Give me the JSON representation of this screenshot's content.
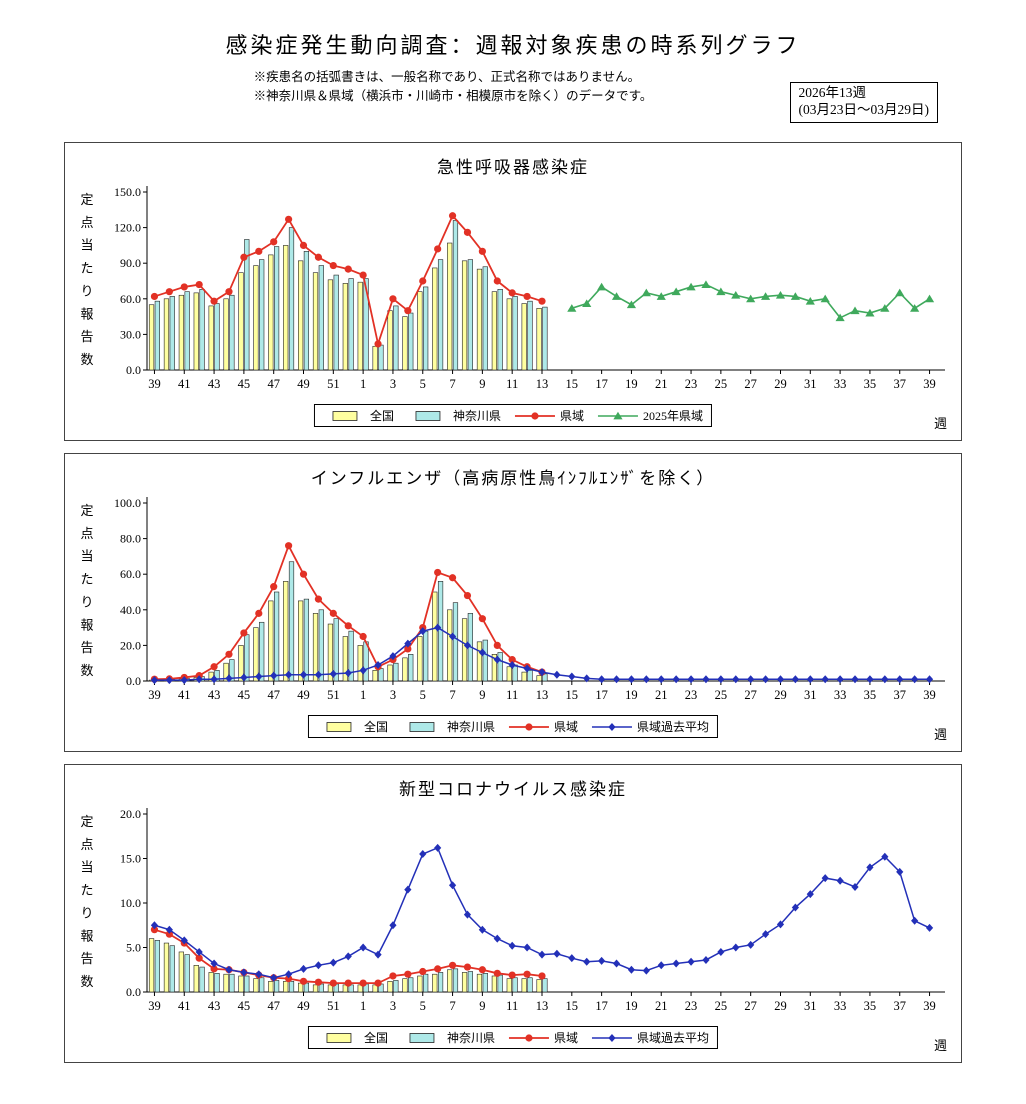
{
  "header": {
    "title": "感染症発生動向調査：週報対象疾患の時系列グラフ",
    "note1": "※疾患名の括弧書きは、一般名称であり、正式名称ではありません。",
    "note2": "※神奈川県＆県域（横浜市・川崎市・相模原市を除く）のデータです。",
    "week_box": {
      "line1": "2026年13週",
      "line2": "(03月23日～03月29日)"
    }
  },
  "y_axis_label": "定点当たり報告数",
  "chart_data": [
    {
      "type": "bar",
      "title": "急性呼吸器感染症",
      "x_unit": "週",
      "ylabel": "定点当たり報告数",
      "y_max": 150,
      "y_step": 30,
      "y_decimals": 1,
      "x_slots": 53,
      "x_tick_labels": [
        "39",
        "41",
        "43",
        "45",
        "47",
        "49",
        "51",
        "1",
        "3",
        "5",
        "7",
        "9",
        "11",
        "13",
        "15",
        "17",
        "19",
        "21",
        "23",
        "25",
        "27",
        "29",
        "31",
        "33",
        "35",
        "37",
        "39"
      ],
      "series": [
        {
          "key": "zenkoku",
          "name": "全国",
          "type": "bar",
          "color": "#ffffa0",
          "start": 0,
          "values": [
            55,
            60,
            63,
            65,
            54,
            60,
            82,
            88,
            97,
            105,
            92,
            82,
            76,
            73,
            74,
            20,
            50,
            45,
            66,
            86,
            107,
            92,
            85,
            66,
            60,
            56,
            52
          ]
        },
        {
          "key": "kanagawa",
          "name": "神奈川県",
          "type": "bar",
          "color": "#aee9e8",
          "start": 0,
          "values": [
            58,
            62,
            66,
            68,
            56,
            63,
            110,
            93,
            104,
            120,
            100,
            88,
            80,
            77,
            77,
            21,
            54,
            48,
            70,
            93,
            126,
            93,
            87,
            68,
            62,
            58,
            53
          ]
        },
        {
          "key": "keniki",
          "name": "県域",
          "type": "line",
          "marker": "circle",
          "color": "#e23125",
          "line_width": 1.8,
          "start": 0,
          "values": [
            62,
            66,
            70,
            72,
            58,
            66,
            95,
            100,
            108,
            127,
            105,
            95,
            88,
            85,
            80,
            22,
            60,
            50,
            75,
            102,
            130,
            116,
            100,
            75,
            65,
            62,
            58
          ]
        },
        {
          "key": "keniki-2025",
          "name": "2025年県域",
          "type": "line",
          "marker": "triangle",
          "color": "#3fa95c",
          "line_width": 1.6,
          "start": 28,
          "values": [
            52,
            56,
            70,
            62,
            55,
            65,
            62,
            66,
            70,
            72,
            66,
            63,
            60,
            62,
            63,
            62,
            58,
            60,
            44,
            50,
            48,
            52,
            65,
            52,
            60
          ]
        }
      ]
    },
    {
      "type": "bar",
      "title": "インフルエンザ（高病原性鳥ｲﾝﾌﾙｴﾝｻﾞを除く）",
      "x_unit": "週",
      "ylabel": "定点当たり報告数",
      "y_max": 100,
      "y_step": 20,
      "y_decimals": 1,
      "x_slots": 53,
      "x_tick_labels": [
        "39",
        "41",
        "43",
        "45",
        "47",
        "49",
        "51",
        "1",
        "3",
        "5",
        "7",
        "9",
        "11",
        "13",
        "15",
        "17",
        "19",
        "21",
        "23",
        "25",
        "27",
        "29",
        "31",
        "33",
        "35",
        "37",
        "39"
      ],
      "series": [
        {
          "key": "zenkoku",
          "name": "全国",
          "type": "bar",
          "color": "#ffffa0",
          "start": 0,
          "values": [
            0.5,
            0.8,
            1.2,
            2,
            5,
            10,
            20,
            30,
            45,
            56,
            45,
            38,
            32,
            25,
            20,
            6,
            9,
            13,
            25,
            50,
            40,
            35,
            22,
            15,
            8,
            5,
            3
          ]
        },
        {
          "key": "kanagawa",
          "name": "神奈川県",
          "type": "bar",
          "color": "#aee9e8",
          "start": 0,
          "values": [
            0.5,
            0.9,
            1.4,
            2.5,
            6,
            12,
            26,
            33,
            50,
            67,
            46,
            40,
            35,
            28,
            22,
            7,
            10,
            15,
            28,
            56,
            44,
            38,
            23,
            16,
            9,
            6,
            4
          ]
        },
        {
          "key": "keniki",
          "name": "県域",
          "type": "line",
          "marker": "circle",
          "color": "#e23125",
          "line_width": 1.8,
          "start": 0,
          "values": [
            1,
            1.2,
            2,
            3,
            8,
            15,
            27,
            38,
            53,
            76,
            60,
            46,
            38,
            31,
            25,
            8,
            12,
            18,
            30,
            61,
            58,
            48,
            35,
            20,
            12,
            8,
            5
          ]
        },
        {
          "key": "keniki-kako",
          "name": "県域過去平均",
          "type": "line",
          "marker": "diamond",
          "color": "#2330b8",
          "line_width": 1.5,
          "start": 0,
          "values": [
            0.5,
            0.5,
            0.5,
            1,
            1,
            1.5,
            2,
            2.5,
            3,
            3.5,
            3.5,
            3.5,
            4,
            4.5,
            6,
            9,
            14,
            21,
            28,
            30,
            25,
            20,
            16,
            12,
            9,
            7,
            5,
            3.5,
            2.5,
            1.5,
            1,
            1,
            1,
            1,
            1,
            1,
            1,
            1,
            1,
            1,
            1,
            1,
            1,
            1,
            1,
            1,
            1,
            1,
            1,
            1,
            1,
            1,
            1
          ]
        }
      ]
    },
    {
      "type": "bar",
      "title": "新型コロナウイルス感染症",
      "x_unit": "週",
      "ylabel": "定点当たり報告数",
      "y_max": 20,
      "y_step": 5,
      "y_decimals": 1,
      "x_slots": 53,
      "x_tick_labels": [
        "39",
        "41",
        "43",
        "45",
        "47",
        "49",
        "51",
        "1",
        "3",
        "5",
        "7",
        "9",
        "11",
        "13",
        "15",
        "17",
        "19",
        "21",
        "23",
        "25",
        "27",
        "29",
        "31",
        "33",
        "35",
        "37",
        "39"
      ],
      "series": [
        {
          "key": "zenkoku",
          "name": "全国",
          "type": "bar",
          "color": "#ffffa0",
          "start": 0,
          "values": [
            6,
            5.5,
            4.5,
            3,
            2.2,
            2,
            1.8,
            1.5,
            1.2,
            1.2,
            1,
            0.8,
            0.8,
            0.8,
            0.8,
            0.8,
            1.2,
            1.5,
            1.8,
            2,
            2.5,
            2.2,
            2,
            1.8,
            1.5,
            1.5,
            1.4
          ]
        },
        {
          "key": "kanagawa",
          "name": "神奈川県",
          "type": "bar",
          "color": "#aee9e8",
          "start": 0,
          "values": [
            5.8,
            5.2,
            4.2,
            2.8,
            2.1,
            2,
            1.8,
            1.6,
            1.3,
            1.2,
            1,
            0.9,
            0.9,
            0.8,
            0.9,
            0.9,
            1.3,
            1.6,
            2,
            2.2,
            2.6,
            2.3,
            2.1,
            1.9,
            1.6,
            1.6,
            1.5
          ]
        },
        {
          "key": "keniki",
          "name": "県域",
          "type": "line",
          "marker": "circle",
          "color": "#e23125",
          "line_width": 1.8,
          "start": 0,
          "values": [
            7,
            6.5,
            5.5,
            3.8,
            2.6,
            2.5,
            2.2,
            1.9,
            1.6,
            1.5,
            1.2,
            1.1,
            1,
            1,
            1,
            1,
            1.8,
            2,
            2.3,
            2.6,
            3,
            2.8,
            2.5,
            2.1,
            1.9,
            2,
            1.8
          ]
        },
        {
          "key": "keniki-kako",
          "name": "県域過去平均",
          "type": "line",
          "marker": "diamond",
          "color": "#2330b8",
          "line_width": 1.5,
          "start": 0,
          "values": [
            7.5,
            7,
            5.8,
            4.5,
            3.2,
            2.5,
            2.2,
            2,
            1.6,
            2,
            2.6,
            3,
            3.3,
            4,
            5,
            4.2,
            7.5,
            11.5,
            15.5,
            16.2,
            12,
            8.7,
            7,
            6,
            5.2,
            5,
            4.2,
            4.3,
            3.8,
            3.4,
            3.5,
            3.2,
            2.5,
            2.4,
            3,
            3.2,
            3.4,
            3.6,
            4.5,
            5,
            5.3,
            6.5,
            7.6,
            9.5,
            11,
            12.8,
            12.5,
            11.8,
            14,
            15.2,
            13.5,
            8,
            7.2
          ]
        }
      ]
    }
  ]
}
